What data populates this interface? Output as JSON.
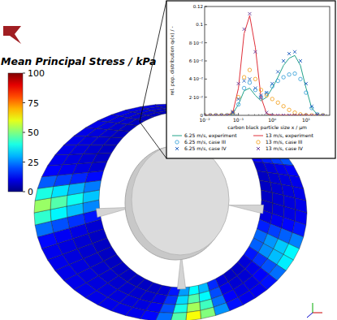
{
  "stress_plot": {
    "colorbar_title": "Mean Principal Stress / kPa",
    "colorbar_range": [
      0,
      100
    ],
    "colorbar_ticks": [
      0,
      25,
      50,
      75,
      100
    ]
  },
  "chart_data": {
    "type": "line",
    "log": "x",
    "legend": "bottom",
    "xlabel": "carbon black particle size x / μm",
    "ylabel": "rel. pop. distribution q₀(x) / -",
    "xlim": [
      0.01,
      50
    ],
    "xticks": [
      {
        "value": 0.01,
        "label": "10⁻²"
      },
      {
        "value": 0.1,
        "label": "10⁻¹"
      },
      {
        "value": 1,
        "label": "10⁰"
      },
      {
        "value": 10,
        "label": "10¹"
      }
    ],
    "ylim": [
      0,
      0.12
    ],
    "yticks": [
      0,
      {
        "value": 0.02,
        "label": "2·10⁻²"
      },
      {
        "value": 0.04,
        "label": "4·10⁻²"
      },
      {
        "value": 0.06,
        "label": "6·10⁻²"
      },
      {
        "value": 0.08,
        "label": "8·10⁻²"
      },
      0.1,
      0.12
    ],
    "x": [
      0.01,
      0.0147,
      0.0215,
      0.0316,
      0.0464,
      0.0681,
      0.1,
      0.147,
      0.215,
      0.316,
      0.464,
      0.681,
      1,
      1.47,
      2.15,
      3.16,
      4.64,
      6.81,
      10,
      14.7,
      21.5,
      31.6
    ],
    "series": [
      {
        "name": "6.25 m/s, experiment",
        "type": "line",
        "line_style": "solid",
        "color": "#23a38a",
        "values": [
          0,
          0,
          0,
          0,
          0,
          0.002,
          0.012,
          0.027,
          0.03,
          0.022,
          0.016,
          0.02,
          0.03,
          0.042,
          0.055,
          0.063,
          0.066,
          0.055,
          0.03,
          0.008,
          0.001,
          0
        ]
      },
      {
        "name": "13 m/s, experiment",
        "type": "line",
        "line_style": "solid",
        "color": "#e0303a",
        "values": [
          0,
          0,
          0,
          0,
          0,
          0.003,
          0.03,
          0.09,
          0.11,
          0.075,
          0.02,
          0.002,
          0,
          0,
          0,
          0,
          0,
          0,
          0,
          0,
          0,
          0
        ]
      },
      {
        "name": "6.25 m/s, case III",
        "type": "scatter",
        "marker": "circle",
        "color": "#2b9bd6",
        "values": [
          0,
          0,
          0,
          0,
          0,
          0.002,
          0.012,
          0.03,
          0.036,
          0.028,
          0.02,
          0.024,
          0.032,
          0.038,
          0.042,
          0.045,
          0.046,
          0.04,
          0.025,
          0.008,
          0.001,
          0
        ]
      },
      {
        "name": "13 m/s, case III",
        "type": "scatter",
        "marker": "circle",
        "color": "#f39c12",
        "values": [
          0,
          0,
          0,
          0,
          0,
          0.003,
          0.02,
          0.042,
          0.05,
          0.04,
          0.028,
          0.022,
          0.018,
          0.014,
          0.01,
          0.006,
          0.003,
          0.001,
          0,
          0,
          0,
          0
        ]
      },
      {
        "name": "6.25 m/s, case IV",
        "type": "scatter",
        "marker": "x",
        "color": "#1f5fbf",
        "values": [
          0,
          0,
          0,
          0,
          0,
          0.003,
          0.018,
          0.038,
          0.04,
          0.03,
          0.022,
          0.025,
          0.035,
          0.048,
          0.06,
          0.068,
          0.07,
          0.06,
          0.035,
          0.01,
          0.001,
          0
        ]
      },
      {
        "name": "13 m/s, case IV",
        "type": "scatter",
        "marker": "x",
        "color": "#6a3d9a",
        "values": [
          0,
          0,
          0,
          0,
          0,
          0.004,
          0.035,
          0.095,
          0.112,
          0.07,
          0.02,
          0.003,
          0,
          0,
          0,
          0,
          0,
          0,
          0,
          0,
          0,
          0
        ]
      }
    ]
  }
}
